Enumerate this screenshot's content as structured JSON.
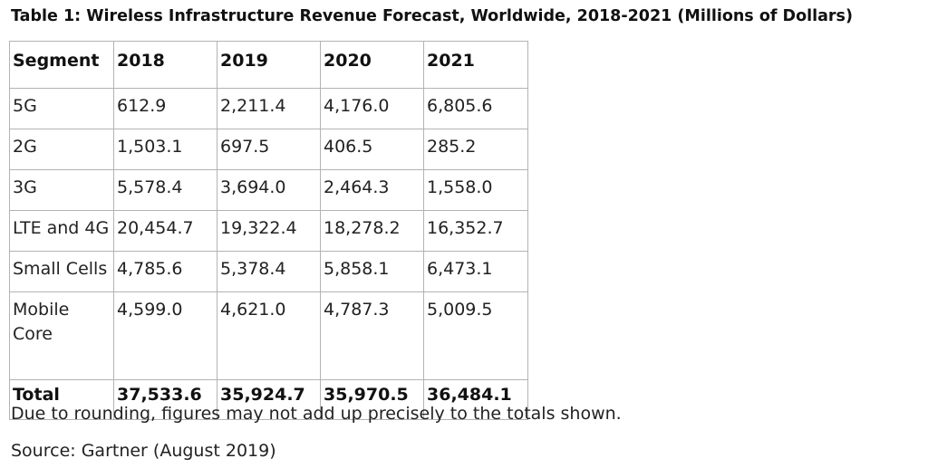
{
  "title": "Table 1: Wireless Infrastructure Revenue Forecast, Worldwide, 2018-2021 (Millions of Dollars)",
  "table": {
    "headers": [
      "Segment",
      "2018",
      "2019",
      "2020",
      "2021"
    ],
    "rows": [
      [
        "5G",
        "612.9",
        "2,211.4",
        "4,176.0",
        "6,805.6"
      ],
      [
        "2G",
        "1,503.1",
        "697.5",
        "406.5",
        "285.2"
      ],
      [
        "3G",
        "5,578.4",
        "3,694.0",
        "2,464.3",
        "1,558.0"
      ],
      [
        "LTE and 4G",
        "20,454.7",
        "19,322.4",
        "18,278.2",
        "16,352.7"
      ],
      [
        "Small Cells",
        "4,785.6",
        "5,378.4",
        "5,858.1",
        "6,473.1"
      ],
      [
        "Mobile Core",
        "4,599.0",
        "4,621.0",
        "4,787.3",
        "5,009.5"
      ]
    ],
    "total": [
      "Total",
      "37,533.6",
      "35,924.7",
      "35,970.5",
      "36,484.1"
    ]
  },
  "notes": {
    "rounding": "Due to rounding, figures may not add up precisely to the totals shown.",
    "source": "Source: Gartner (August 2019)"
  }
}
